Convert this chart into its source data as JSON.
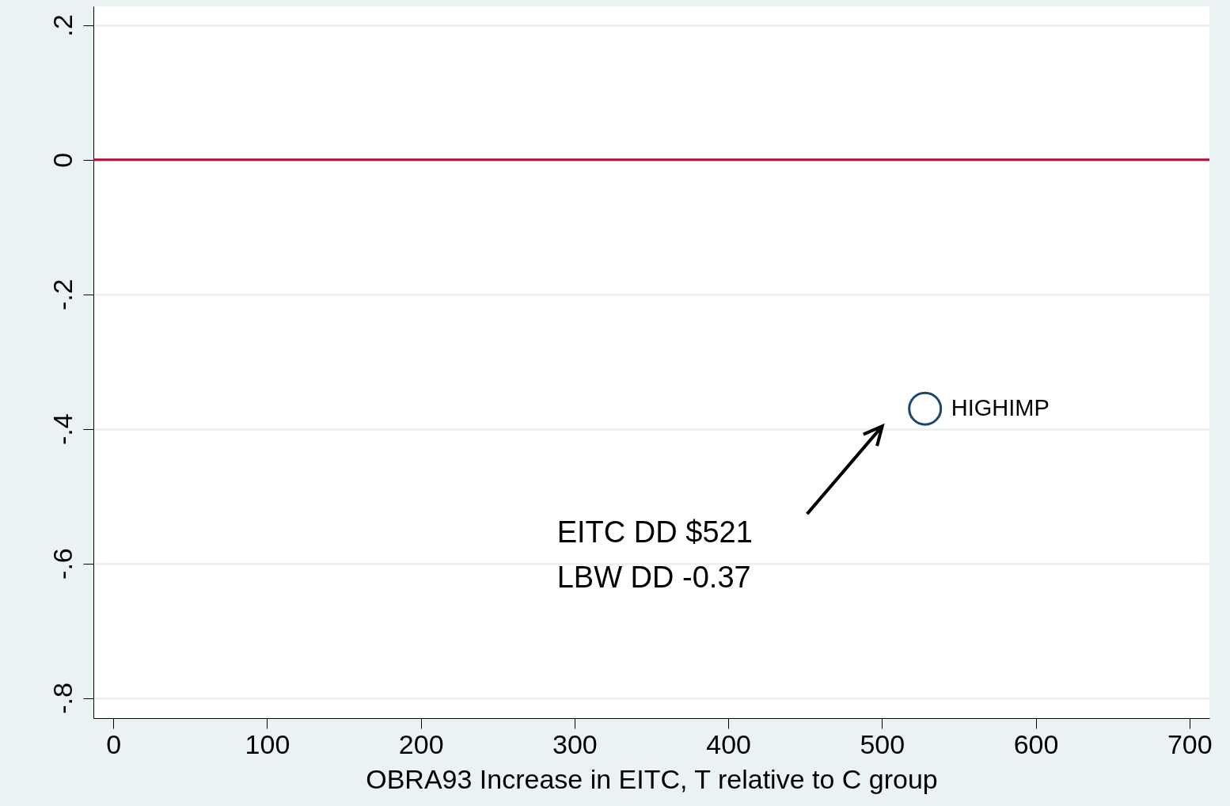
{
  "chart_data": {
    "type": "scatter",
    "xlabel": "OBRA93 Increase in EITC, T relative to C group",
    "series": [
      {
        "name": "HIGHIMP",
        "color": "#1a476f",
        "x": [
          528
        ],
        "values": [
          -0.37
        ]
      }
    ],
    "xlim": [
      -13,
      713
    ],
    "xticks": [
      0,
      100,
      200,
      300,
      400,
      500,
      600,
      700
    ],
    "ylim": [
      -0.83,
      0.228
    ],
    "yticks": [
      {
        "value": 0.2,
        "label": ".2"
      },
      {
        "value": 0,
        "label": "0"
      },
      {
        "value": -0.2,
        "label": "-.2"
      },
      {
        "value": -0.4,
        "label": "-.4"
      },
      {
        "value": -0.6,
        "label": "-.6"
      },
      {
        "value": -0.8,
        "label": "-.8"
      }
    ],
    "grid": "y",
    "marker": "circle",
    "legend": false,
    "ref_lines": [
      {
        "axis": "y",
        "value": 0,
        "color": "#c10534"
      }
    ],
    "annotations": [
      "EITC DD $521",
      "LBW DD -0.37"
    ]
  }
}
